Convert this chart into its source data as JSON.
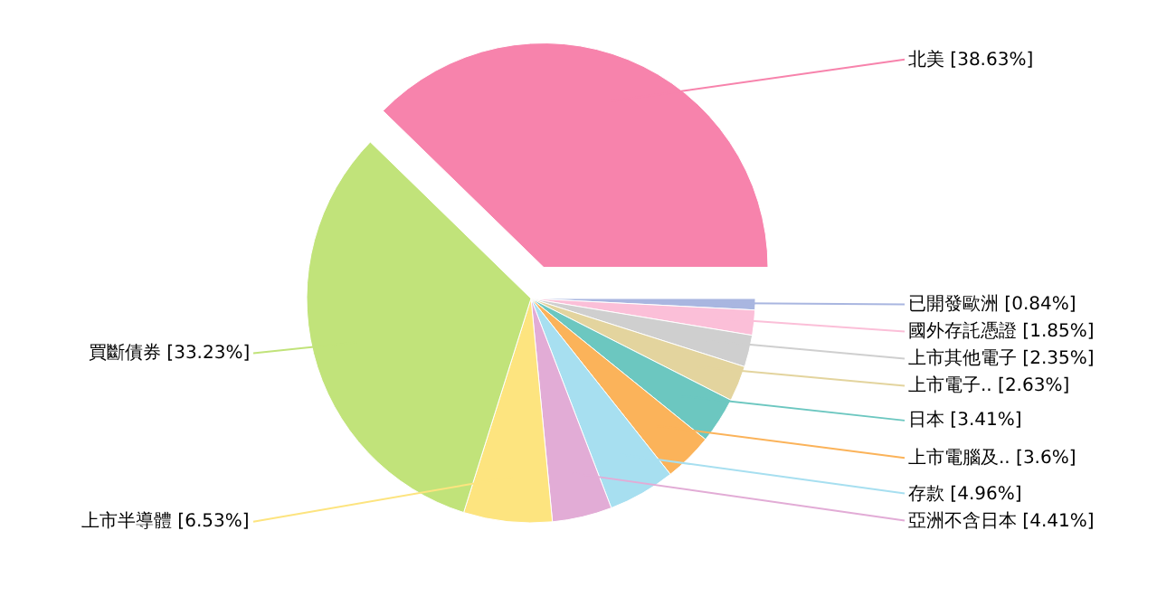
{
  "chart_data": {
    "type": "pie",
    "categories": [
      "北美",
      "已開發歐洲",
      "國外存託憑證",
      "上市其他電子",
      "上市電子..",
      "日本",
      "上市電腦及..",
      "存款",
      "亞洲不含日本",
      "上市半導體",
      "買斷債券"
    ],
    "values": [
      38.63,
      0.84,
      1.85,
      2.35,
      2.63,
      3.41,
      3.6,
      4.96,
      4.41,
      6.53,
      33.23
    ],
    "value_labels": [
      "[38.63%]",
      "[0.84%]",
      "[1.85%]",
      "[2.35%]",
      "[2.63%]",
      "[3.41%]",
      "[3.6%]",
      "[4.96%]",
      "[4.41%]",
      "[6.53%]",
      "[33.23%]"
    ],
    "colors": [
      "#f783ac",
      "#a9b6e0",
      "#fbbfd8",
      "#cfcfcf",
      "#e3d49e",
      "#6cc7c0",
      "#fbb35a",
      "#a7dff0",
      "#e2acd6",
      "#fde47f",
      "#c1e37a"
    ]
  }
}
